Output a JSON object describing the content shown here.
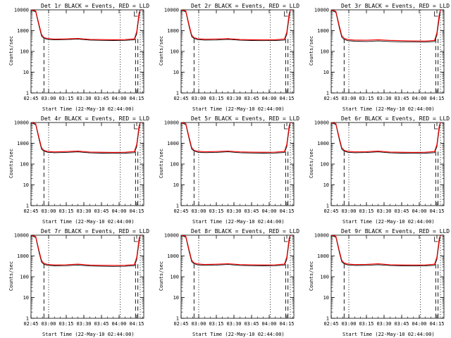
{
  "chart_data": {
    "type": "line",
    "layout": "3x3 grid of panels",
    "ylim": [
      1,
      10000
    ],
    "yscale": "log",
    "y_ticks": [
      "1",
      "10",
      "100",
      "1000",
      "10000"
    ],
    "x_ticks": [
      "02:45",
      "03:00",
      "03:15",
      "03:30",
      "03:45",
      "04:00",
      "04:15"
    ],
    "x_tick_minutes": [
      0,
      15,
      30,
      45,
      60,
      75,
      90
    ],
    "xlim_minutes": [
      0,
      96
    ],
    "xlabel": "Start Time (22-May-10 02:44:00)",
    "ylabel": "Counts/sec",
    "colors": {
      "events": "#000000",
      "lld": "#ff0000"
    },
    "panels": [
      {
        "title": "Det 1r BLACK = Events, RED = LLD",
        "series": [
          {
            "color": "black",
            "x": [
              0,
              4,
              7,
              9,
              11,
              14,
              20,
              30,
              40,
              50,
              60,
              70,
              80,
              88,
              90,
              92,
              93
            ],
            "y": [
              10000,
              8000,
              1500,
              550,
              430,
              380,
              360,
              370,
              390,
              350,
              340,
              335,
              340,
              360,
              700,
              5000,
              10000
            ]
          },
          {
            "color": "red",
            "x": [
              0,
              4,
              7,
              9,
              11,
              14,
              20,
              30,
              40,
              50,
              60,
              70,
              80,
              88,
              90,
              92,
              93
            ],
            "y": [
              10000,
              9000,
              1800,
              650,
              470,
              420,
              390,
              400,
              420,
              380,
              370,
              365,
              370,
              400,
              900,
              7000,
              10000
            ]
          }
        ],
        "dashed_x": [
          11,
          89,
          91
        ],
        "dotted_x": [
          15,
          76,
          93
        ]
      },
      {
        "title": "Det 2r BLACK = Events, RED = LLD",
        "series": [
          {
            "color": "black",
            "x": [
              0,
              4,
              7,
              9,
              11,
              14,
              20,
              30,
              40,
              50,
              60,
              70,
              80,
              88,
              90,
              92,
              93
            ],
            "y": [
              10000,
              8000,
              1400,
              520,
              420,
              370,
              350,
              355,
              380,
              345,
              335,
              330,
              335,
              350,
              650,
              4500,
              10000
            ]
          },
          {
            "color": "red",
            "x": [
              0,
              4,
              7,
              9,
              11,
              14,
              20,
              30,
              40,
              50,
              60,
              70,
              80,
              88,
              90,
              92,
              93
            ],
            "y": [
              10000,
              9000,
              1700,
              620,
              460,
              410,
              385,
              395,
              415,
              375,
              365,
              360,
              365,
              395,
              850,
              6500,
              10000
            ]
          }
        ],
        "dashed_x": [
          11,
          89,
          91
        ],
        "dotted_x": [
          15,
          76,
          93
        ]
      },
      {
        "title": "Det 3r BLACK = Events, RED = LLD",
        "series": [
          {
            "color": "black",
            "x": [
              0,
              4,
              7,
              9,
              11,
              14,
              20,
              30,
              40,
              50,
              60,
              70,
              80,
              88,
              90,
              92,
              93
            ],
            "y": [
              10000,
              7500,
              1300,
              480,
              380,
              330,
              310,
              300,
              320,
              300,
              290,
              285,
              280,
              300,
              600,
              4000,
              10000
            ]
          },
          {
            "color": "red",
            "x": [
              0,
              4,
              7,
              9,
              11,
              14,
              20,
              30,
              40,
              50,
              60,
              70,
              80,
              88,
              90,
              92,
              93
            ],
            "y": [
              10000,
              8500,
              1600,
              580,
              430,
              370,
              350,
              345,
              365,
              340,
              330,
              320,
              315,
              340,
              800,
              6000,
              10000
            ]
          }
        ],
        "dashed_x": [
          11,
          89,
          91
        ],
        "dotted_x": [
          15,
          76,
          93
        ]
      },
      {
        "title": "Det 4r BLACK = Events, RED = LLD",
        "series": [
          {
            "color": "black",
            "x": [
              0,
              4,
              7,
              9,
              11,
              14,
              20,
              30,
              40,
              50,
              60,
              70,
              80,
              88,
              90,
              92,
              93
            ],
            "y": [
              10000,
              7800,
              1400,
              510,
              420,
              370,
              350,
              365,
              385,
              345,
              335,
              330,
              335,
              355,
              680,
              4800,
              10000
            ]
          },
          {
            "color": "red",
            "x": [
              0,
              4,
              7,
              9,
              11,
              14,
              20,
              30,
              40,
              50,
              60,
              70,
              80,
              88,
              90,
              92,
              93
            ],
            "y": [
              10000,
              8800,
              1700,
              610,
              460,
              410,
              385,
              400,
              420,
              380,
              370,
              365,
              370,
              400,
              880,
              6800,
              10000
            ]
          }
        ],
        "dashed_x": [
          11,
          89,
          91
        ],
        "dotted_x": [
          15,
          76,
          93
        ]
      },
      {
        "title": "Det 5r BLACK = Events, RED = LLD",
        "series": [
          {
            "color": "black",
            "x": [
              0,
              4,
              7,
              9,
              11,
              14,
              20,
              30,
              40,
              50,
              60,
              70,
              80,
              88,
              90,
              92,
              93
            ],
            "y": [
              10000,
              8000,
              1450,
              530,
              425,
              375,
              355,
              365,
              390,
              350,
              340,
              335,
              340,
              360,
              700,
              5000,
              10000
            ]
          },
          {
            "color": "red",
            "x": [
              0,
              4,
              7,
              9,
              11,
              14,
              20,
              30,
              40,
              50,
              60,
              70,
              80,
              88,
              90,
              92,
              93
            ],
            "y": [
              10000,
              9000,
              1750,
              630,
              465,
              415,
              390,
              400,
              425,
              385,
              375,
              370,
              375,
              405,
              900,
              7000,
              10000
            ]
          }
        ],
        "dashed_x": [
          11,
          89,
          91
        ],
        "dotted_x": [
          15,
          76,
          93
        ]
      },
      {
        "title": "Det 6r BLACK = Events, RED = LLD",
        "series": [
          {
            "color": "black",
            "x": [
              0,
              4,
              7,
              9,
              11,
              14,
              20,
              30,
              40,
              50,
              60,
              70,
              80,
              88,
              90,
              92,
              93
            ],
            "y": [
              10000,
              7900,
              1400,
              520,
              420,
              370,
              350,
              360,
              385,
              345,
              335,
              330,
              335,
              355,
              690,
              4900,
              10000
            ]
          },
          {
            "color": "red",
            "x": [
              0,
              4,
              7,
              9,
              11,
              14,
              20,
              30,
              40,
              50,
              60,
              70,
              80,
              88,
              90,
              92,
              93
            ],
            "y": [
              10000,
              8900,
              1700,
              620,
              460,
              410,
              385,
              395,
              420,
              380,
              370,
              365,
              370,
              400,
              890,
              6900,
              10000
            ]
          }
        ],
        "dashed_x": [
          11,
          89,
          91
        ],
        "dotted_x": [
          15,
          76,
          93
        ]
      },
      {
        "title": "Det 7r BLACK = Events, RED = LLD",
        "series": [
          {
            "color": "black",
            "x": [
              0,
              4,
              7,
              9,
              11,
              14,
              20,
              30,
              40,
              50,
              60,
              70,
              80,
              88,
              90,
              92,
              93
            ],
            "y": [
              10000,
              7700,
              1350,
              500,
              400,
              355,
              335,
              340,
              365,
              330,
              320,
              315,
              320,
              340,
              660,
              4600,
              10000
            ]
          },
          {
            "color": "red",
            "x": [
              0,
              4,
              7,
              9,
              11,
              14,
              20,
              30,
              40,
              50,
              60,
              70,
              80,
              88,
              90,
              92,
              93
            ],
            "y": [
              10000,
              8700,
              1650,
              600,
              445,
              395,
              370,
              380,
              405,
              365,
              355,
              350,
              355,
              385,
              860,
              6600,
              10000
            ]
          }
        ],
        "dashed_x": [
          11,
          89,
          91
        ],
        "dotted_x": [
          15,
          76,
          93
        ]
      },
      {
        "title": "Det 8r BLACK = Events, RED = LLD",
        "series": [
          {
            "color": "black",
            "x": [
              0,
              4,
              7,
              9,
              11,
              14,
              20,
              30,
              40,
              50,
              60,
              70,
              80,
              88,
              90,
              92,
              93
            ],
            "y": [
              10000,
              8000,
              1450,
              530,
              425,
              375,
              355,
              365,
              390,
              350,
              340,
              335,
              340,
              360,
              700,
              5000,
              10000
            ]
          },
          {
            "color": "red",
            "x": [
              0,
              4,
              7,
              9,
              11,
              14,
              20,
              30,
              40,
              50,
              60,
              70,
              80,
              88,
              90,
              92,
              93
            ],
            "y": [
              10000,
              9000,
              1750,
              630,
              465,
              415,
              390,
              400,
              425,
              385,
              375,
              370,
              375,
              405,
              900,
              7000,
              10000
            ]
          }
        ],
        "dashed_x": [
          11,
          89,
          91
        ],
        "dotted_x": [
          15,
          76,
          93
        ]
      },
      {
        "title": "Det 9r BLACK = Events, RED = LLD",
        "series": [
          {
            "color": "black",
            "x": [
              0,
              4,
              7,
              9,
              11,
              14,
              20,
              30,
              40,
              50,
              60,
              70,
              80,
              88,
              90,
              92,
              93
            ],
            "y": [
              10000,
              7900,
              1400,
              520,
              420,
              370,
              350,
              355,
              380,
              345,
              335,
              330,
              335,
              355,
              690,
              4900,
              10000
            ]
          },
          {
            "color": "red",
            "x": [
              0,
              4,
              7,
              9,
              11,
              14,
              20,
              30,
              40,
              50,
              60,
              70,
              80,
              88,
              90,
              92,
              93
            ],
            "y": [
              10000,
              8900,
              1700,
              620,
              460,
              410,
              385,
              395,
              420,
              380,
              370,
              365,
              370,
              400,
              890,
              6900,
              10000
            ]
          }
        ],
        "dashed_x": [
          11,
          89,
          91
        ],
        "dotted_x": [
          15,
          76,
          93
        ]
      }
    ]
  }
}
